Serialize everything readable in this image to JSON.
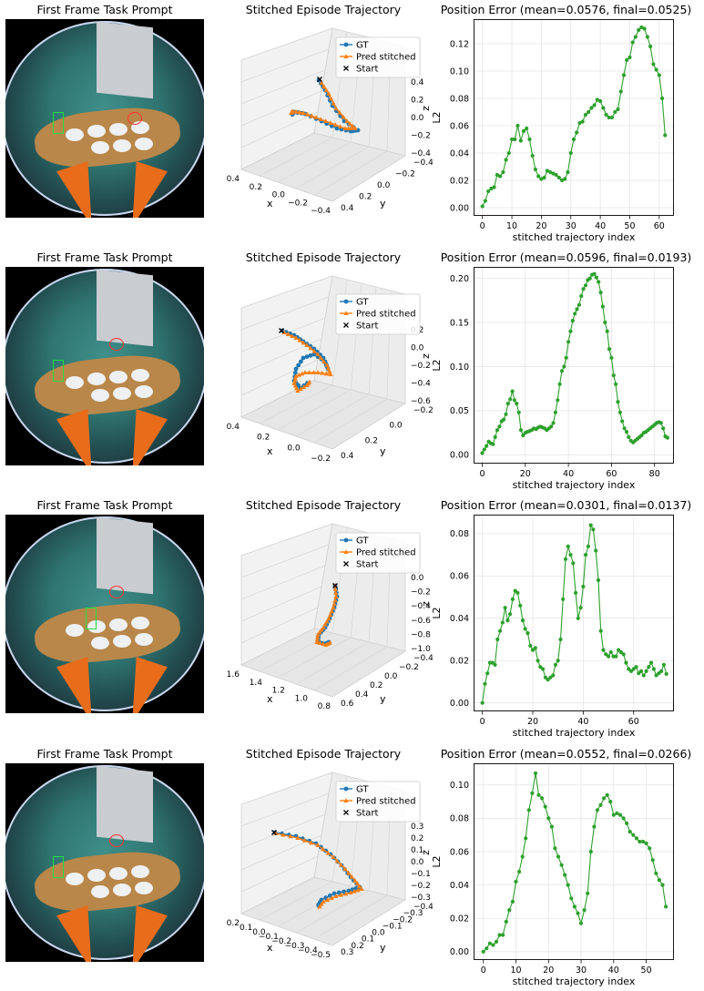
{
  "rows": [
    {
      "image_title": "First Frame Task Prompt",
      "traj_title": "Stitched Episode Trajectory",
      "legend": [
        "GT",
        "Pred stitched",
        "Start"
      ],
      "axis_x": "x",
      "axis_y": "y",
      "axis_z": "z",
      "x_ticks": [
        "0.4",
        "0.2",
        "0.0",
        "−0.2",
        "−0.4"
      ],
      "y_ticks": [
        "−0.4",
        "−0.2",
        "0.0",
        "0.2",
        "0.4"
      ],
      "z_ticks": [
        "0.4",
        "0.2",
        "0.0",
        "−0.2",
        "−0.4"
      ]
    },
    {
      "image_title": "First Frame Task Prompt",
      "traj_title": "Stitched Episode Trajectory",
      "legend": [
        "GT",
        "Pred stitched",
        "Start"
      ],
      "axis_x": "x",
      "axis_y": "y",
      "axis_z": "z",
      "x_ticks": [
        "0.4",
        "0.2",
        "0.0",
        "−0.2"
      ],
      "y_ticks": [
        "−0.2",
        "0.0",
        "0.2",
        "0.4"
      ],
      "z_ticks": [
        "0.2",
        "0.0",
        "−0.2",
        "−0.4",
        "−0.6"
      ]
    },
    {
      "image_title": "First Frame Task Prompt",
      "traj_title": "Stitched Episode Trajectory",
      "legend": [
        "GT",
        "Pred stitched",
        "Start"
      ],
      "axis_x": "x",
      "axis_y": "y",
      "axis_z": "z",
      "x_ticks": [
        "1.6",
        "1.4",
        "1.2",
        "1.0",
        "0.8"
      ],
      "y_ticks": [
        "−0.4",
        "−0.2",
        "0.0",
        "0.2",
        "0.4",
        "0.6"
      ],
      "z_ticks": [
        "0.0",
        "−0.2",
        "−0.4",
        "−0.6",
        "−0.8",
        "−1.0"
      ]
    },
    {
      "image_title": "First Frame Task Prompt",
      "traj_title": "Stitched Episode Trajectory",
      "legend": [
        "GT",
        "Pred stitched",
        "Start"
      ],
      "axis_x": "x",
      "axis_y": "y",
      "axis_z": "z",
      "x_ticks": [
        "0.2",
        "0.1",
        "0.0",
        "−0.1",
        "−0.2",
        "−0.3",
        "−0.4",
        "−0.5"
      ],
      "y_ticks": [
        "−0.4",
        "−0.3",
        "−0.2",
        "−0.1",
        "0.0",
        "0.1",
        "0.2",
        "0.3"
      ],
      "z_ticks": [
        "0.3",
        "0.2",
        "0.1",
        "0.0",
        "−0.1",
        "−0.2",
        "−0.3"
      ]
    }
  ],
  "chart_data": [
    {
      "type": "line",
      "title": "Position Error (mean=0.0576, final=0.0525)",
      "xlabel": "stitched trajectory index",
      "ylabel": "L2",
      "xlim": [
        -3,
        65
      ],
      "ylim": [
        -0.006,
        0.138
      ],
      "xticks": [
        0,
        10,
        20,
        30,
        40,
        50,
        60
      ],
      "yticks": [
        0.0,
        0.02,
        0.04,
        0.06,
        0.08,
        0.1,
        0.12
      ],
      "yticklabels": [
        "0.00",
        "0.02",
        "0.04",
        "0.06",
        "0.08",
        "0.10",
        "0.12"
      ],
      "grid": true,
      "color": "#2ca02c",
      "values": [
        0.001,
        0.005,
        0.012,
        0.014,
        0.015,
        0.024,
        0.023,
        0.026,
        0.035,
        0.04,
        0.05,
        0.05,
        0.06,
        0.049,
        0.056,
        0.058,
        0.05,
        0.038,
        0.028,
        0.023,
        0.021,
        0.022,
        0.027,
        0.026,
        0.025,
        0.024,
        0.022,
        0.02,
        0.021,
        0.026,
        0.04,
        0.05,
        0.055,
        0.062,
        0.063,
        0.068,
        0.07,
        0.073,
        0.075,
        0.079,
        0.078,
        0.073,
        0.068,
        0.066,
        0.066,
        0.07,
        0.072,
        0.085,
        0.097,
        0.108,
        0.11,
        0.121,
        0.125,
        0.13,
        0.132,
        0.131,
        0.125,
        0.118,
        0.105,
        0.101,
        0.097,
        0.08,
        0.053
      ]
    },
    {
      "type": "line",
      "title": "Position Error (mean=0.0596, final=0.0193)",
      "xlabel": "stitched trajectory index",
      "ylabel": "L2",
      "xlim": [
        -4,
        89
      ],
      "ylim": [
        -0.01,
        0.213
      ],
      "xticks": [
        0,
        20,
        40,
        60,
        80
      ],
      "yticks": [
        0.0,
        0.05,
        0.1,
        0.15,
        0.2
      ],
      "yticklabels": [
        "0.00",
        "0.05",
        "0.10",
        "0.15",
        "0.20"
      ],
      "grid": true,
      "color": "#2ca02c",
      "values": [
        0.002,
        0.006,
        0.01,
        0.015,
        0.013,
        0.012,
        0.02,
        0.028,
        0.032,
        0.038,
        0.04,
        0.046,
        0.058,
        0.063,
        0.072,
        0.062,
        0.058,
        0.048,
        0.028,
        0.022,
        0.025,
        0.026,
        0.027,
        0.028,
        0.03,
        0.029,
        0.031,
        0.032,
        0.031,
        0.03,
        0.028,
        0.03,
        0.032,
        0.036,
        0.048,
        0.062,
        0.08,
        0.095,
        0.1,
        0.11,
        0.128,
        0.14,
        0.152,
        0.16,
        0.165,
        0.17,
        0.18,
        0.188,
        0.192,
        0.198,
        0.2,
        0.204,
        0.205,
        0.201,
        0.196,
        0.184,
        0.168,
        0.15,
        0.14,
        0.12,
        0.11,
        0.09,
        0.08,
        0.06,
        0.048,
        0.038,
        0.03,
        0.026,
        0.02,
        0.016,
        0.014,
        0.016,
        0.018,
        0.02,
        0.022,
        0.025,
        0.026,
        0.028,
        0.03,
        0.032,
        0.034,
        0.036,
        0.037,
        0.036,
        0.03,
        0.021,
        0.0193
      ]
    },
    {
      "type": "line",
      "title": "Position Error (mean=0.0301, final=0.0137)",
      "xlabel": "stitched trajectory index",
      "ylabel": "L2",
      "xlim": [
        -3.5,
        76
      ],
      "ylim": [
        -0.004,
        0.089
      ],
      "xticks": [
        0,
        20,
        40,
        60
      ],
      "yticks": [
        0.0,
        0.02,
        0.04,
        0.06,
        0.08
      ],
      "yticklabels": [
        "0.00",
        "0.02",
        "0.04",
        "0.06",
        "0.08"
      ],
      "grid": true,
      "color": "#2ca02c",
      "values": [
        0.0,
        0.009,
        0.014,
        0.019,
        0.019,
        0.018,
        0.03,
        0.034,
        0.038,
        0.045,
        0.039,
        0.042,
        0.049,
        0.053,
        0.052,
        0.046,
        0.039,
        0.035,
        0.033,
        0.027,
        0.025,
        0.026,
        0.02,
        0.017,
        0.016,
        0.012,
        0.011,
        0.012,
        0.013,
        0.018,
        0.02,
        0.03,
        0.049,
        0.068,
        0.074,
        0.07,
        0.066,
        0.052,
        0.04,
        0.045,
        0.055,
        0.07,
        0.074,
        0.084,
        0.082,
        0.072,
        0.058,
        0.034,
        0.025,
        0.023,
        0.022,
        0.024,
        0.022,
        0.022,
        0.025,
        0.024,
        0.023,
        0.019,
        0.016,
        0.015,
        0.016,
        0.017,
        0.014,
        0.015,
        0.013,
        0.015,
        0.017,
        0.019,
        0.016,
        0.013,
        0.014,
        0.015,
        0.018,
        0.0137
      ]
    },
    {
      "type": "line",
      "title": "Position Error (mean=0.0552, final=0.0266)",
      "xlabel": "stitched trajectory index",
      "ylabel": "L2",
      "xlim": [
        -3,
        58.5
      ],
      "ylim": [
        -0.005,
        0.113
      ],
      "xticks": [
        0,
        10,
        20,
        30,
        40,
        50
      ],
      "yticks": [
        0.0,
        0.02,
        0.04,
        0.06,
        0.08,
        0.1
      ],
      "yticklabels": [
        "0.00",
        "0.02",
        "0.04",
        "0.06",
        "0.08",
        "0.10"
      ],
      "grid": true,
      "color": "#2ca02c",
      "values": [
        0.0,
        0.002,
        0.005,
        0.004,
        0.006,
        0.01,
        0.01,
        0.018,
        0.025,
        0.03,
        0.042,
        0.048,
        0.057,
        0.068,
        0.085,
        0.095,
        0.107,
        0.094,
        0.092,
        0.087,
        0.08,
        0.075,
        0.062,
        0.057,
        0.052,
        0.046,
        0.04,
        0.032,
        0.027,
        0.023,
        0.017,
        0.025,
        0.035,
        0.06,
        0.075,
        0.085,
        0.088,
        0.092,
        0.094,
        0.09,
        0.082,
        0.083,
        0.082,
        0.08,
        0.077,
        0.072,
        0.07,
        0.068,
        0.066,
        0.066,
        0.065,
        0.062,
        0.055,
        0.047,
        0.043,
        0.04,
        0.027
      ]
    }
  ]
}
